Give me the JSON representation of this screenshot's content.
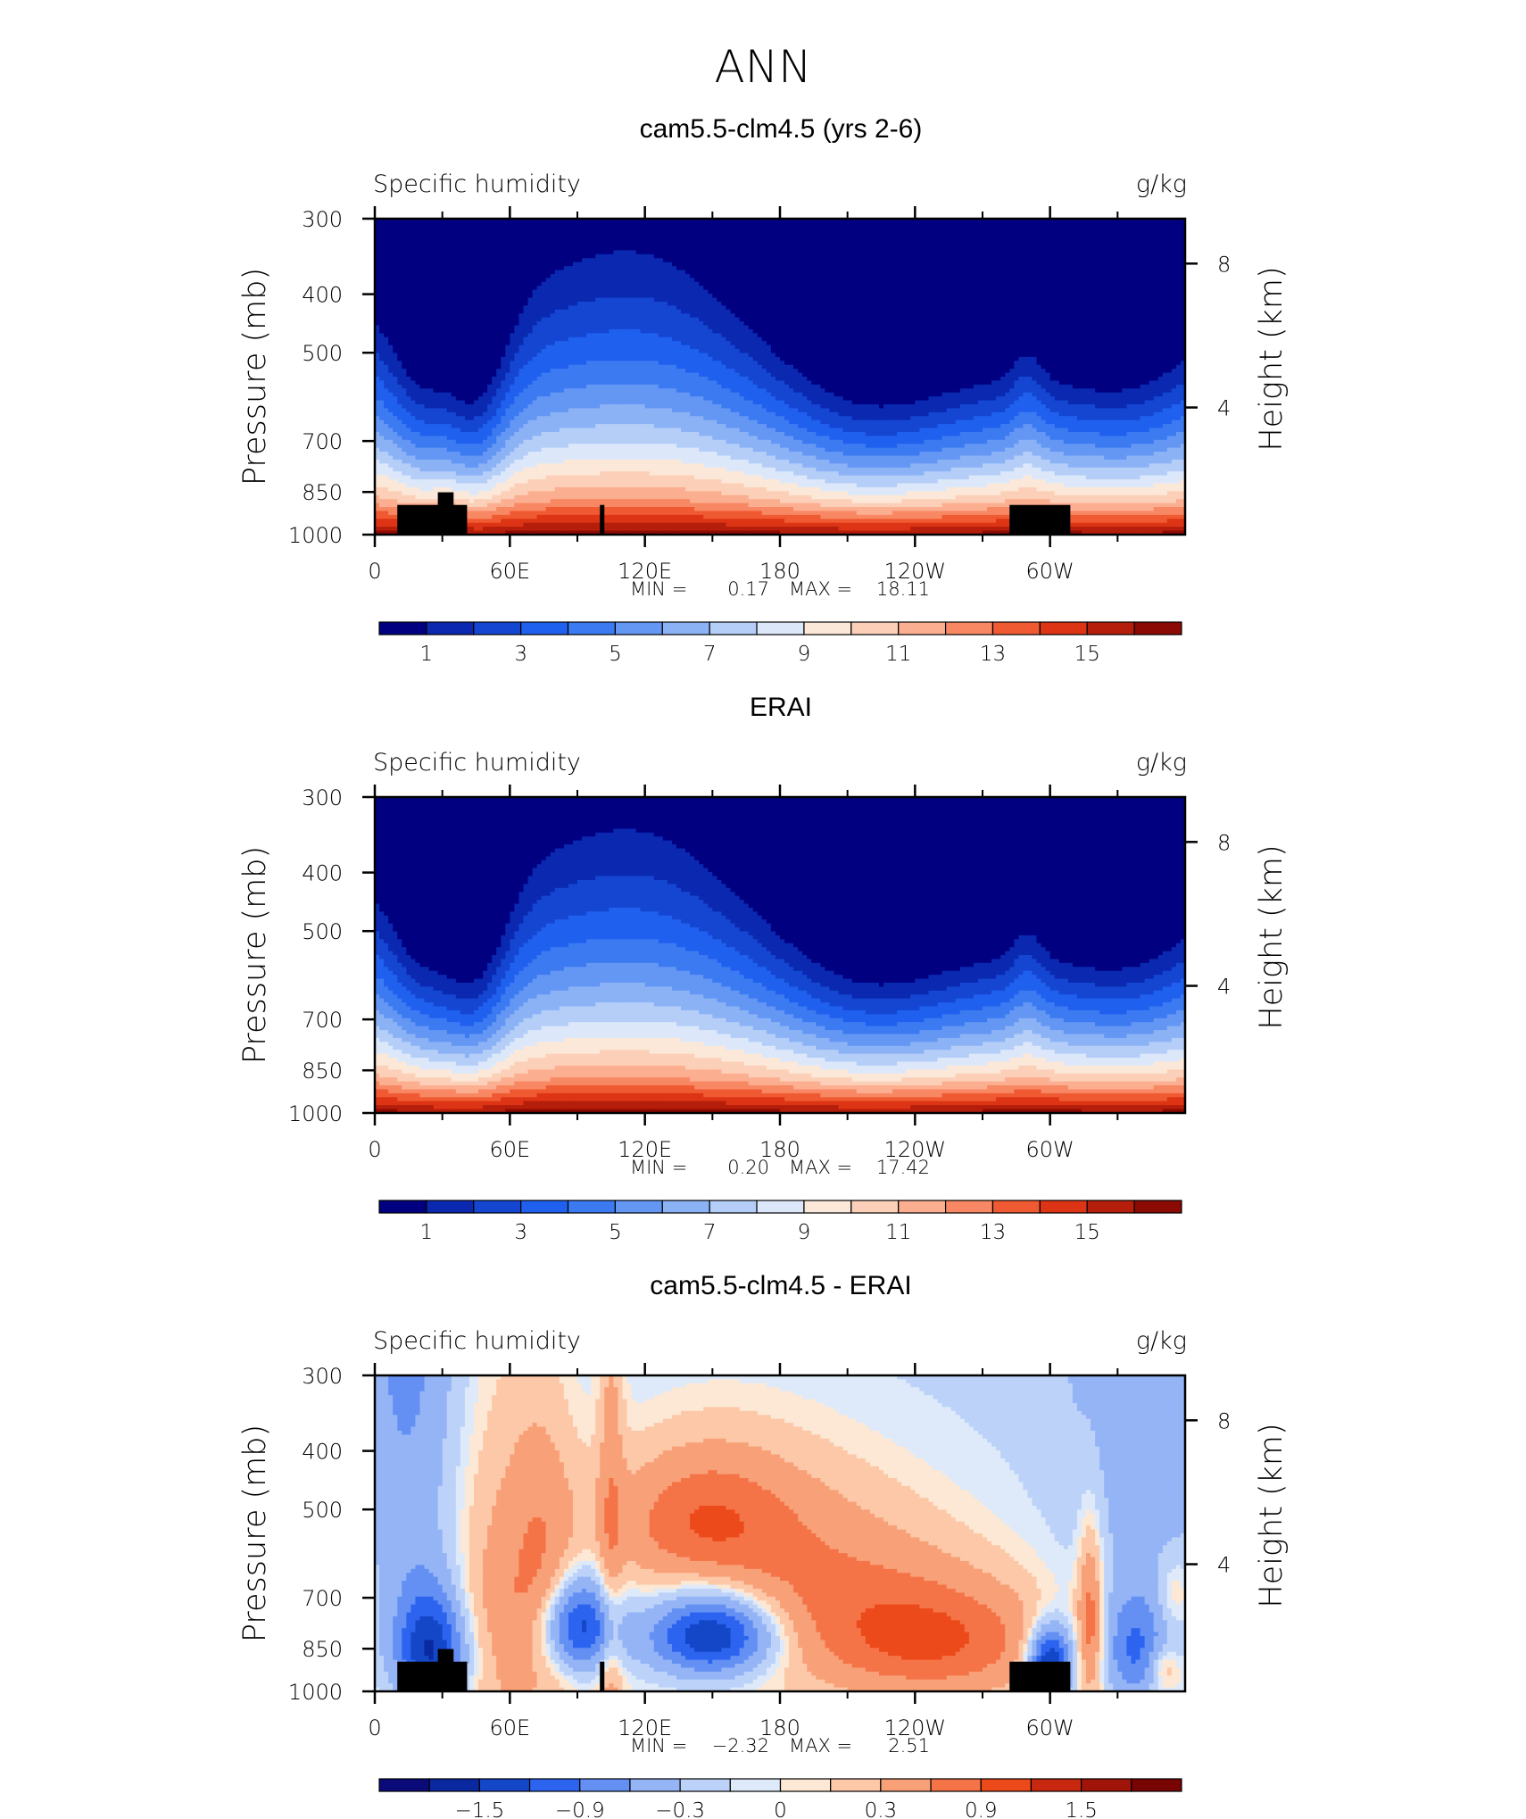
{
  "page_title": "ANN",
  "colors": {
    "seq": [
      "#000080",
      "#0a28b0",
      "#1446d2",
      "#2060ee",
      "#3c7af2",
      "#6496f4",
      "#8cb2f6",
      "#b4cef8",
      "#dce8fa",
      "#fce8d8",
      "#fcd0b8",
      "#fcae90",
      "#f88864",
      "#f05a32",
      "#dc3414",
      "#b41e0a",
      "#8c0a04"
    ],
    "diff": [
      "#0a0a78",
      "#0a28a0",
      "#1446c8",
      "#2c64f0",
      "#6490f4",
      "#94b4f6",
      "#bcd2f8",
      "#deeafa",
      "#fce8d4",
      "#fcc8a8",
      "#f8a078",
      "#f47448",
      "#ec4a1a",
      "#c82810",
      "#a0140a",
      "#780404"
    ]
  },
  "panels": [
    {
      "title": "cam5.5-clm4.5 (yrs 2-6)",
      "left_label": "Specific humidity",
      "right_label": "g/kg",
      "y_label": "Pressure (mb)",
      "y2_label": "Height (km)",
      "stats": {
        "min_label": "MIN =",
        "min": "0.17",
        "max_label": "MAX =",
        "max": "18.11"
      },
      "colorbar_labels": [
        "1",
        "3",
        "5",
        "7",
        "9",
        "11",
        "13",
        "15"
      ]
    },
    {
      "title": "ERAI",
      "left_label": "Specific humidity",
      "right_label": "g/kg",
      "y_label": "Pressure (mb)",
      "y2_label": "Height (km)",
      "stats": {
        "min_label": "MIN =",
        "min": "0.20",
        "max_label": "MAX =",
        "max": "17.42"
      },
      "colorbar_labels": [
        "1",
        "3",
        "5",
        "7",
        "9",
        "11",
        "13",
        "15"
      ]
    },
    {
      "title": "cam5.5-clm4.5 - ERAI",
      "left_label": "Specific humidity",
      "right_label": "g/kg",
      "y_label": "Pressure (mb)",
      "y2_label": "Height (km)",
      "stats": {
        "min_label": "MIN =",
        "min": "−2.32",
        "max_label": "MAX =",
        "max": "2.51"
      },
      "colorbar_labels": [
        "−1.5",
        "−0.9",
        "−0.3",
        "0",
        "0.3",
        "0.9",
        "1.5"
      ]
    }
  ],
  "chart_data": [
    {
      "type": "heatmap",
      "title": "cam5.5-clm4.5 (yrs 2-6)",
      "xlabel": "",
      "ylabel": "Pressure (mb)",
      "y2label": "Height (km)",
      "x_ticks": [
        "0",
        "60E",
        "120E",
        "180",
        "120W",
        "60W"
      ],
      "y_ticks": [
        300,
        400,
        500,
        700,
        850,
        1000
      ],
      "y2_ticks": [
        8,
        4
      ],
      "ylim": [
        1000,
        300
      ],
      "units": "g/kg",
      "min": 0.17,
      "max": 18.11,
      "levels": [
        1,
        2,
        3,
        4,
        5,
        6,
        7,
        8,
        9,
        10,
        11,
        12,
        13,
        14,
        15,
        16
      ],
      "terrain": true
    },
    {
      "type": "heatmap",
      "title": "ERAI",
      "xlabel": "",
      "ylabel": "Pressure (mb)",
      "y2label": "Height (km)",
      "x_ticks": [
        "0",
        "60E",
        "120E",
        "180",
        "120W",
        "60W"
      ],
      "y_ticks": [
        300,
        400,
        500,
        700,
        850,
        1000
      ],
      "y2_ticks": [
        8,
        4
      ],
      "ylim": [
        1000,
        300
      ],
      "units": "g/kg",
      "min": 0.2,
      "max": 17.42,
      "levels": [
        1,
        2,
        3,
        4,
        5,
        6,
        7,
        8,
        9,
        10,
        11,
        12,
        13,
        14,
        15,
        16
      ],
      "terrain": false
    },
    {
      "type": "heatmap",
      "title": "cam5.5-clm4.5 - ERAI",
      "xlabel": "",
      "ylabel": "Pressure (mb)",
      "y2label": "Height (km)",
      "x_ticks": [
        "0",
        "60E",
        "120E",
        "180",
        "120W",
        "60W"
      ],
      "y_ticks": [
        300,
        400,
        500,
        700,
        850,
        1000
      ],
      "y2_ticks": [
        8,
        4
      ],
      "ylim": [
        1000,
        300
      ],
      "units": "g/kg",
      "min": -2.32,
      "max": 2.51,
      "levels": [
        -1.8,
        -1.5,
        -1.2,
        -0.9,
        -0.6,
        -0.3,
        -0.1,
        0,
        0.1,
        0.3,
        0.6,
        0.9,
        1.2,
        1.5,
        1.8
      ],
      "terrain": true
    }
  ]
}
